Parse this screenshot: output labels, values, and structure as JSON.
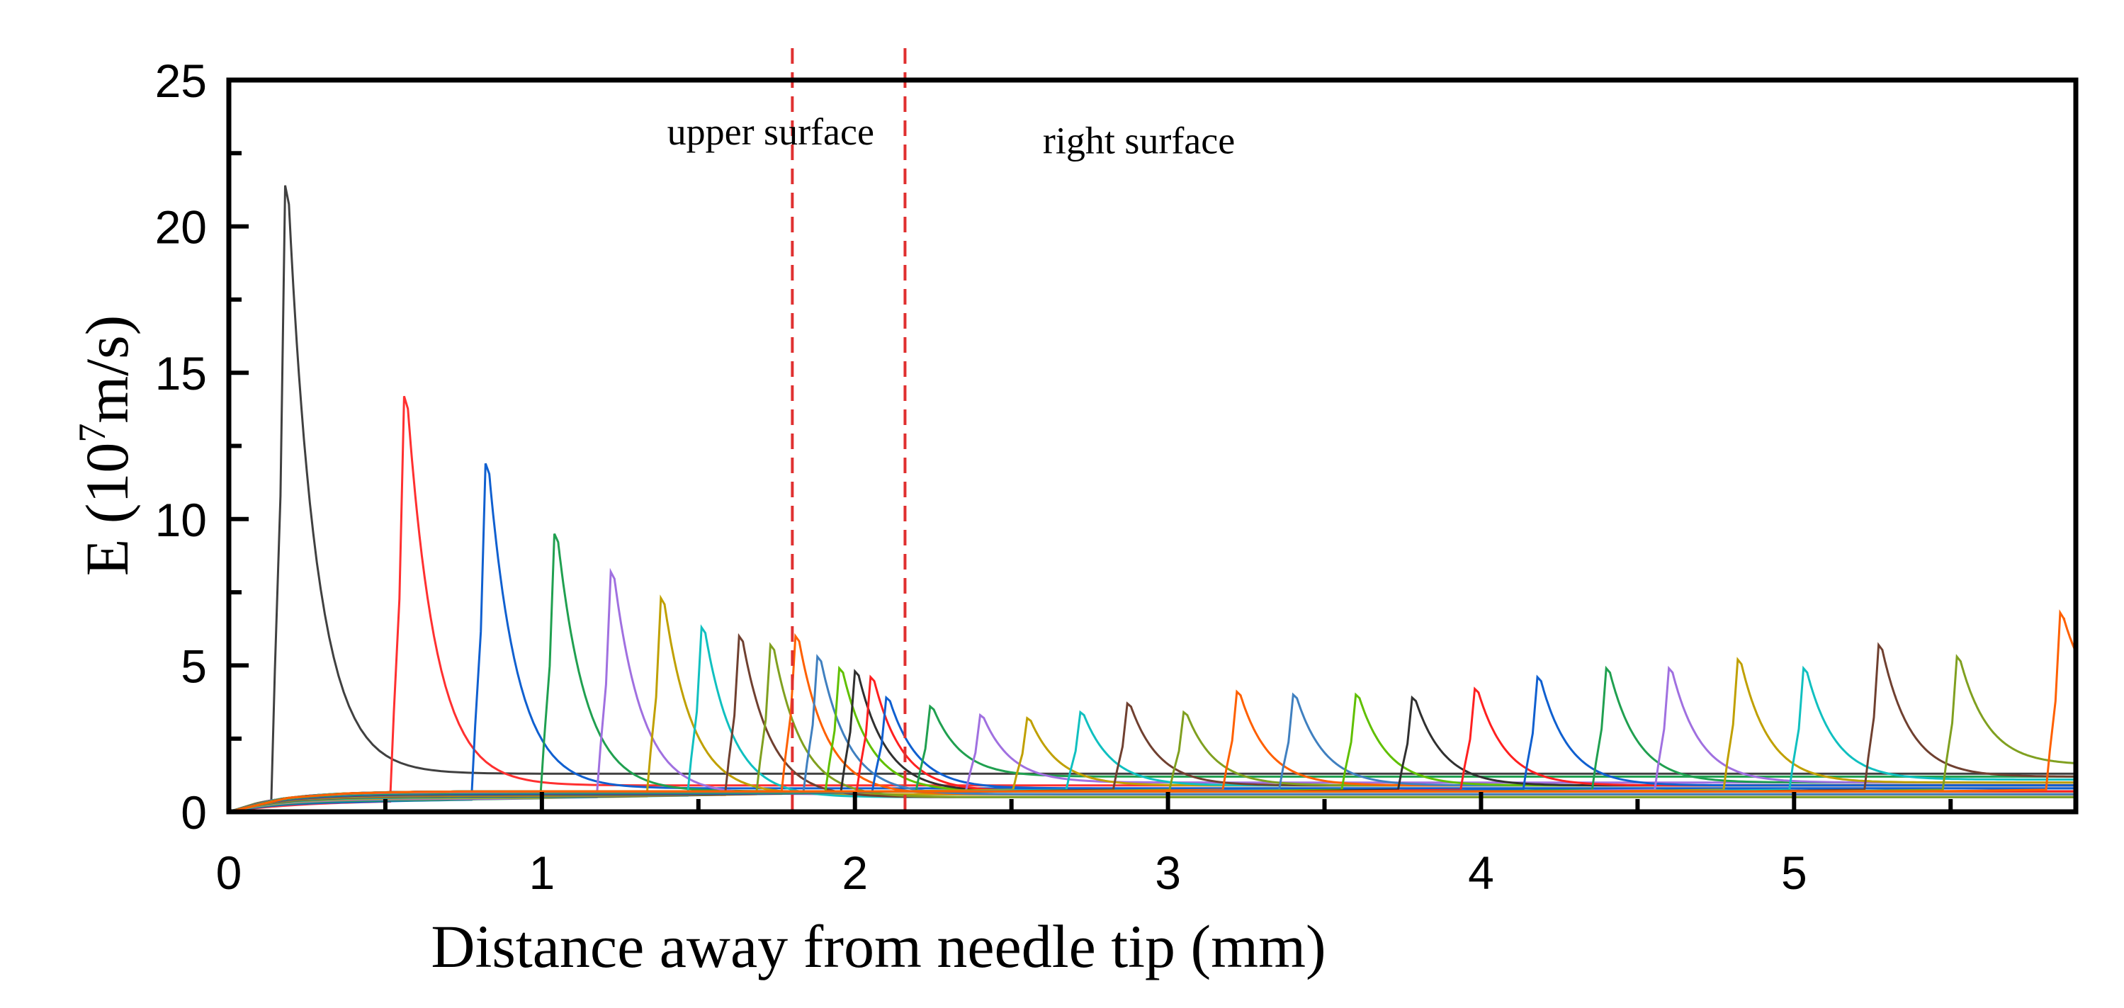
{
  "chart_data": {
    "type": "line",
    "xlabel": "Distance away from needle tip (mm)",
    "ylabel_prefix": "E (10",
    "ylabel_exp": "7",
    "ylabel_suffix": "m/s)",
    "xlim": [
      0,
      5.9
    ],
    "ylim": [
      0,
      25
    ],
    "x_ticks": [
      0,
      1,
      2,
      3,
      4,
      5
    ],
    "x_tick_labels": [
      "0",
      "1",
      "2",
      "3",
      "4",
      "5"
    ],
    "x_minor_ticks": [
      0.5,
      1.5,
      2.5,
      3.5,
      4.5,
      5.5
    ],
    "y_ticks": [
      0,
      5,
      10,
      15,
      20,
      25
    ],
    "y_tick_labels": [
      "0",
      "5",
      "10",
      "15",
      "20",
      "25"
    ],
    "y_minor_ticks": [
      2.5,
      7.5,
      12.5,
      17.5,
      22.5
    ],
    "grid": false,
    "legend": "none",
    "annotations": [
      {
        "text": "upper surface",
        "x": 1.4,
        "y": 22.8
      },
      {
        "text": "right surface",
        "x": 2.6,
        "y": 22.5
      }
    ],
    "vlines": [
      {
        "x": 1.8,
        "color": "#e03030",
        "style": "dashed"
      },
      {
        "x": 2.16,
        "color": "#e03030",
        "style": "dashed"
      }
    ],
    "series": [
      {
        "color": "#404040",
        "peak_x": 0.18,
        "peak_y": 21.4,
        "tail": 1.3
      },
      {
        "color": "#ff3030",
        "peak_x": 0.56,
        "peak_y": 14.2,
        "tail": 0.9
      },
      {
        "color": "#1060d0",
        "peak_x": 0.82,
        "peak_y": 11.9,
        "tail": 0.8
      },
      {
        "color": "#20a050",
        "peak_x": 1.04,
        "peak_y": 9.5,
        "tail": 0.7
      },
      {
        "color": "#a070e0",
        "peak_x": 1.22,
        "peak_y": 8.2,
        "tail": 0.6
      },
      {
        "color": "#c0a000",
        "peak_x": 1.38,
        "peak_y": 7.3,
        "tail": 0.6
      },
      {
        "color": "#10c0c0",
        "peak_x": 1.51,
        "peak_y": 6.3,
        "tail": 0.5
      },
      {
        "color": "#704030",
        "peak_x": 1.63,
        "peak_y": 6.0,
        "tail": 0.5
      },
      {
        "color": "#80a020",
        "peak_x": 1.73,
        "peak_y": 5.7,
        "tail": 0.5
      },
      {
        "color": "#ff6000",
        "peak_x": 1.81,
        "peak_y": 6.0,
        "tail": 0.6
      },
      {
        "color": "#4080c0",
        "peak_x": 1.88,
        "peak_y": 5.3,
        "tail": 0.6
      },
      {
        "color": "#60c000",
        "peak_x": 1.95,
        "peak_y": 4.9,
        "tail": 0.7
      },
      {
        "color": "#303030",
        "peak_x": 2.0,
        "peak_y": 4.8,
        "tail": 0.7
      },
      {
        "color": "#ff2020",
        "peak_x": 2.05,
        "peak_y": 4.6,
        "tail": 0.7
      },
      {
        "color": "#1060d0",
        "peak_x": 2.1,
        "peak_y": 3.9,
        "tail": 0.8
      },
      {
        "color": "#20a050",
        "peak_x": 2.24,
        "peak_y": 3.6,
        "tail": 1.2
      },
      {
        "color": "#a070e0",
        "peak_x": 2.4,
        "peak_y": 3.3,
        "tail": 1.0
      },
      {
        "color": "#c0a000",
        "peak_x": 2.55,
        "peak_y": 3.2,
        "tail": 0.9
      },
      {
        "color": "#10c0c0",
        "peak_x": 2.72,
        "peak_y": 3.4,
        "tail": 0.9
      },
      {
        "color": "#704030",
        "peak_x": 2.87,
        "peak_y": 3.7,
        "tail": 0.9
      },
      {
        "color": "#80a020",
        "peak_x": 3.05,
        "peak_y": 3.4,
        "tail": 0.9
      },
      {
        "color": "#ff6000",
        "peak_x": 3.22,
        "peak_y": 4.1,
        "tail": 0.9
      },
      {
        "color": "#4080c0",
        "peak_x": 3.4,
        "peak_y": 4.0,
        "tail": 0.9
      },
      {
        "color": "#60c000",
        "peak_x": 3.6,
        "peak_y": 4.0,
        "tail": 0.9
      },
      {
        "color": "#303030",
        "peak_x": 3.78,
        "peak_y": 3.9,
        "tail": 0.9
      },
      {
        "color": "#ff2020",
        "peak_x": 3.98,
        "peak_y": 4.2,
        "tail": 0.9
      },
      {
        "color": "#1060d0",
        "peak_x": 4.18,
        "peak_y": 4.6,
        "tail": 0.9
      },
      {
        "color": "#20a050",
        "peak_x": 4.4,
        "peak_y": 4.9,
        "tail": 1.0
      },
      {
        "color": "#a070e0",
        "peak_x": 4.6,
        "peak_y": 4.9,
        "tail": 1.0
      },
      {
        "color": "#c0a000",
        "peak_x": 4.82,
        "peak_y": 5.2,
        "tail": 1.0
      },
      {
        "color": "#10c0c0",
        "peak_x": 5.03,
        "peak_y": 4.9,
        "tail": 1.1
      },
      {
        "color": "#704030",
        "peak_x": 5.27,
        "peak_y": 5.7,
        "tail": 1.2
      },
      {
        "color": "#80a020",
        "peak_x": 5.52,
        "peak_y": 5.3,
        "tail": 1.6
      },
      {
        "color": "#ff6000",
        "peak_x": 5.85,
        "peak_y": 6.8,
        "tail": 3.3
      }
    ]
  }
}
